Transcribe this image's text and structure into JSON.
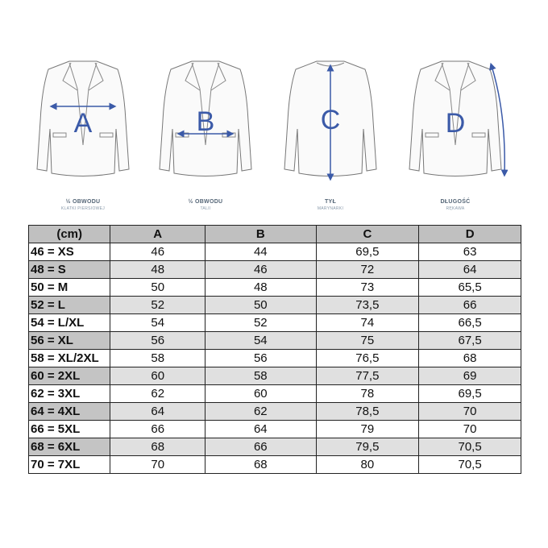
{
  "figures": [
    {
      "letter": "A",
      "title": "½ OBWODU",
      "subtitle": "KLATKI PIERSIOWEJ"
    },
    {
      "letter": "B",
      "title": "½ OBWODU",
      "subtitle": "TALII"
    },
    {
      "letter": "C",
      "title": "TYŁ",
      "subtitle": "MARYNARKI"
    },
    {
      "letter": "D",
      "title": "DŁUGOŚĆ",
      "subtitle": "RĘKAWA"
    }
  ],
  "accent": "#3b5aa8",
  "table": {
    "headers": [
      "(cm)",
      "A",
      "B",
      "C",
      "D"
    ],
    "rows": [
      [
        "46 = XS",
        "46",
        "44",
        "69,5",
        "63"
      ],
      [
        "48 = S",
        "48",
        "46",
        "72",
        "64"
      ],
      [
        "50 = M",
        "50",
        "48",
        "73",
        "65,5"
      ],
      [
        "52 = L",
        "52",
        "50",
        "73,5",
        "66"
      ],
      [
        "54 = L/XL",
        "54",
        "52",
        "74",
        "66,5"
      ],
      [
        "56 = XL",
        "56",
        "54",
        "75",
        "67,5"
      ],
      [
        "58 = XL/2XL",
        "58",
        "56",
        "76,5",
        "68"
      ],
      [
        "60 = 2XL",
        "60",
        "58",
        "77,5",
        "69"
      ],
      [
        "62 = 3XL",
        "62",
        "60",
        "78",
        "69,5"
      ],
      [
        "64 = 4XL",
        "64",
        "62",
        "78,5",
        "70"
      ],
      [
        "66 = 5XL",
        "66",
        "64",
        "79",
        "70"
      ],
      [
        "68 = 6XL",
        "68",
        "66",
        "79,5",
        "70,5"
      ],
      [
        "70 = 7XL",
        "70",
        "68",
        "80",
        "70,5"
      ]
    ]
  }
}
